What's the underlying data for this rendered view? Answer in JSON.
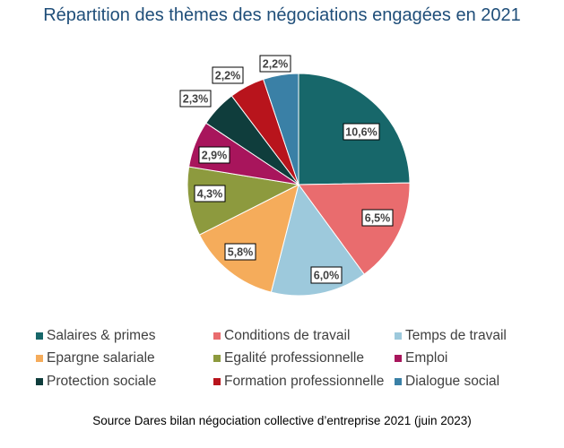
{
  "chart_data": {
    "type": "pie",
    "title": "Répartition des thèmes des négociations engagées en 2021",
    "categories": [
      "Salaires & primes",
      "Conditions de travail",
      "Temps de travail",
      "Epargne salariale",
      "Egalité professionnelle",
      "Emploi",
      "Protection sociale",
      "Formation professionnelle",
      "Dialogue social"
    ],
    "values": [
      10.6,
      6.5,
      6.0,
      5.8,
      4.3,
      2.9,
      2.3,
      2.2,
      2.2
    ],
    "data_labels": [
      "10,6%",
      "6,5%",
      "6,0%",
      "5,8%",
      "4,3%",
      "2,9%",
      "2,3%",
      "2,2%",
      "2,2%"
    ],
    "colors": [
      "#17676A",
      "#E96C6E",
      "#9DC9DC",
      "#F5AC5B",
      "#8D9A3E",
      "#A8155C",
      "#0F3D3C",
      "#B8141C",
      "#3A80A6"
    ],
    "legend_position": "bottom",
    "start_angle": "12 o'clock, clockwise"
  },
  "source": "Source Dares bilan négociation collective d’entreprise 2021 (juin 2023)"
}
